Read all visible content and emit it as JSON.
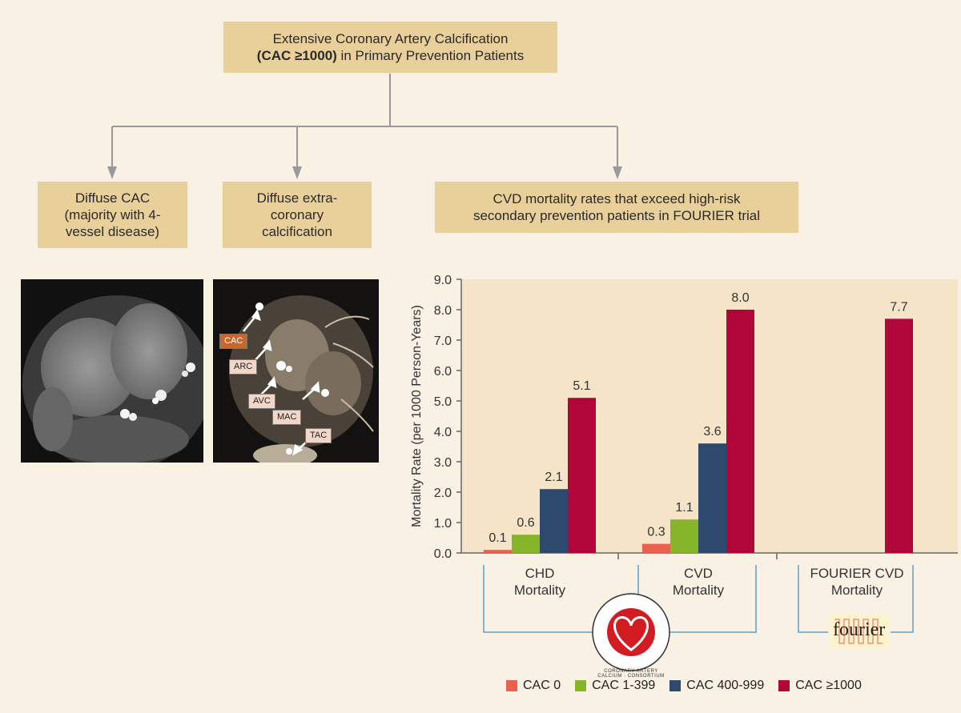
{
  "flow": {
    "top_line1": "Extensive Coronary Artery Calcification",
    "top_line2_bold": "(CAC ≥1000)",
    "top_line2_rest": " in Primary Prevention Patients",
    "box1": [
      "Diffuse CAC",
      "(majority with 4-",
      "vessel disease)"
    ],
    "box2": [
      "Diffuse extra-",
      "coronary",
      "calcification"
    ],
    "box3": [
      "CVD mortality rates that exceed high-risk",
      "secondary prevention patients in FOURIER trial"
    ]
  },
  "image_labels": [
    "CAC",
    "ARC",
    "AVC",
    "MAC",
    "TAC"
  ],
  "chart_data": {
    "type": "bar",
    "ylabel": "Mortality Rate (per 1000 Person-Years)",
    "ylim": [
      0,
      9
    ],
    "yticks": [
      "0.0",
      "1.0",
      "2.0",
      "3.0",
      "4.0",
      "5.0",
      "6.0",
      "7.0",
      "8.0",
      "9.0"
    ],
    "groups": [
      {
        "label": [
          "CHD",
          "Mortality"
        ],
        "values": [
          0.1,
          0.6,
          2.1,
          5.1
        ],
        "labels": [
          "0.1",
          "0.6",
          "2.1",
          "5.1"
        ]
      },
      {
        "label": [
          "CVD",
          "Mortality"
        ],
        "values": [
          0.3,
          1.1,
          3.6,
          8.0
        ],
        "labels": [
          "0.3",
          "1.1",
          "3.6",
          "8.0"
        ]
      },
      {
        "label": [
          "FOURIER CVD",
          "Mortality"
        ],
        "values": [
          null,
          null,
          null,
          7.7
        ],
        "labels": [
          "",
          "",
          "",
          "7.7"
        ]
      }
    ],
    "series": [
      {
        "name": "CAC 0",
        "color": "#e8604e"
      },
      {
        "name": "CAC 1-399",
        "color": "#86b52b"
      },
      {
        "name": "CAC 400-999",
        "color": "#2d4a6e"
      },
      {
        "name": "CAC ≥1000",
        "color": "#b0063a"
      }
    ],
    "grid": false,
    "legend": "bottom"
  },
  "logos": {
    "consortium_text": "CORONARY ARTERY CALCIUM · CONSORTIUM",
    "fourier_text": "fourier"
  }
}
